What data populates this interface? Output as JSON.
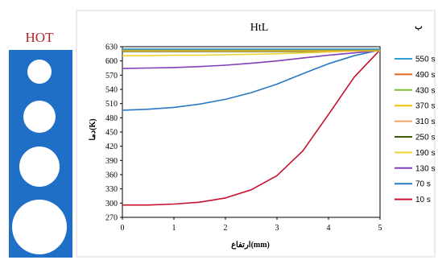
{
  "hot_label": "HOT",
  "panel_color": "#1f6fc6",
  "side_marker": "ب",
  "chart_data": {
    "type": "line",
    "title": "HtL",
    "xlabel": "ارتفاع(mm)",
    "ylabel": "دما(K)",
    "xlim": [
      0,
      5
    ],
    "ylim": [
      270,
      630
    ],
    "xticks": [
      0,
      1,
      2,
      3,
      4,
      5
    ],
    "yticks": [
      270,
      300,
      330,
      360,
      390,
      420,
      450,
      480,
      510,
      540,
      570,
      600,
      630
    ],
    "grid": false,
    "legend_position": "right",
    "x": [
      0,
      0.5,
      1,
      1.5,
      2,
      2.5,
      3,
      3.5,
      4,
      4.5,
      5
    ],
    "series": [
      {
        "name": "550 s",
        "color": "#2e9fd8",
        "values": [
          625,
          625,
          625,
          625,
          625,
          625,
          625,
          625,
          625,
          625,
          625
        ]
      },
      {
        "name": "490 s",
        "color": "#e06a1b",
        "values": [
          624,
          624,
          624,
          624,
          624,
          624,
          624,
          624,
          624,
          624,
          624
        ]
      },
      {
        "name": "430 s",
        "color": "#7fbf3f",
        "values": [
          623,
          623,
          623,
          623,
          623,
          623,
          623,
          623,
          623,
          623,
          623
        ]
      },
      {
        "name": "370 s",
        "color": "#f2c200",
        "values": [
          622,
          622,
          622,
          622,
          622,
          622,
          622,
          622,
          622,
          622,
          622
        ]
      },
      {
        "name": "310 s",
        "color": "#f4a460",
        "values": [
          621,
          621,
          621,
          621,
          621,
          621,
          621,
          621,
          621,
          621,
          621
        ]
      },
      {
        "name": "250 s",
        "color": "#3a5f0b",
        "values": [
          620,
          620,
          620,
          620,
          620,
          620,
          620,
          620,
          621,
          622,
          623
        ]
      },
      {
        "name": "190 s",
        "color": "#f2d22e",
        "values": [
          611,
          611,
          612,
          612,
          613,
          614,
          615,
          617,
          619,
          621,
          622
        ]
      },
      {
        "name": "130 s",
        "color": "#8040b8",
        "values": [
          584,
          585,
          586,
          588,
          591,
          595,
          600,
          606,
          612,
          617,
          622
        ]
      },
      {
        "name": "70 s",
        "color": "#2a78c2",
        "values": [
          496,
          498,
          502,
          509,
          519,
          533,
          551,
          573,
          594,
          611,
          623
        ]
      },
      {
        "name": "10 s",
        "color": "#c8102e",
        "values": [
          296,
          296,
          298,
          302,
          311,
          328,
          358,
          410,
          487,
          566,
          623
        ]
      }
    ]
  }
}
